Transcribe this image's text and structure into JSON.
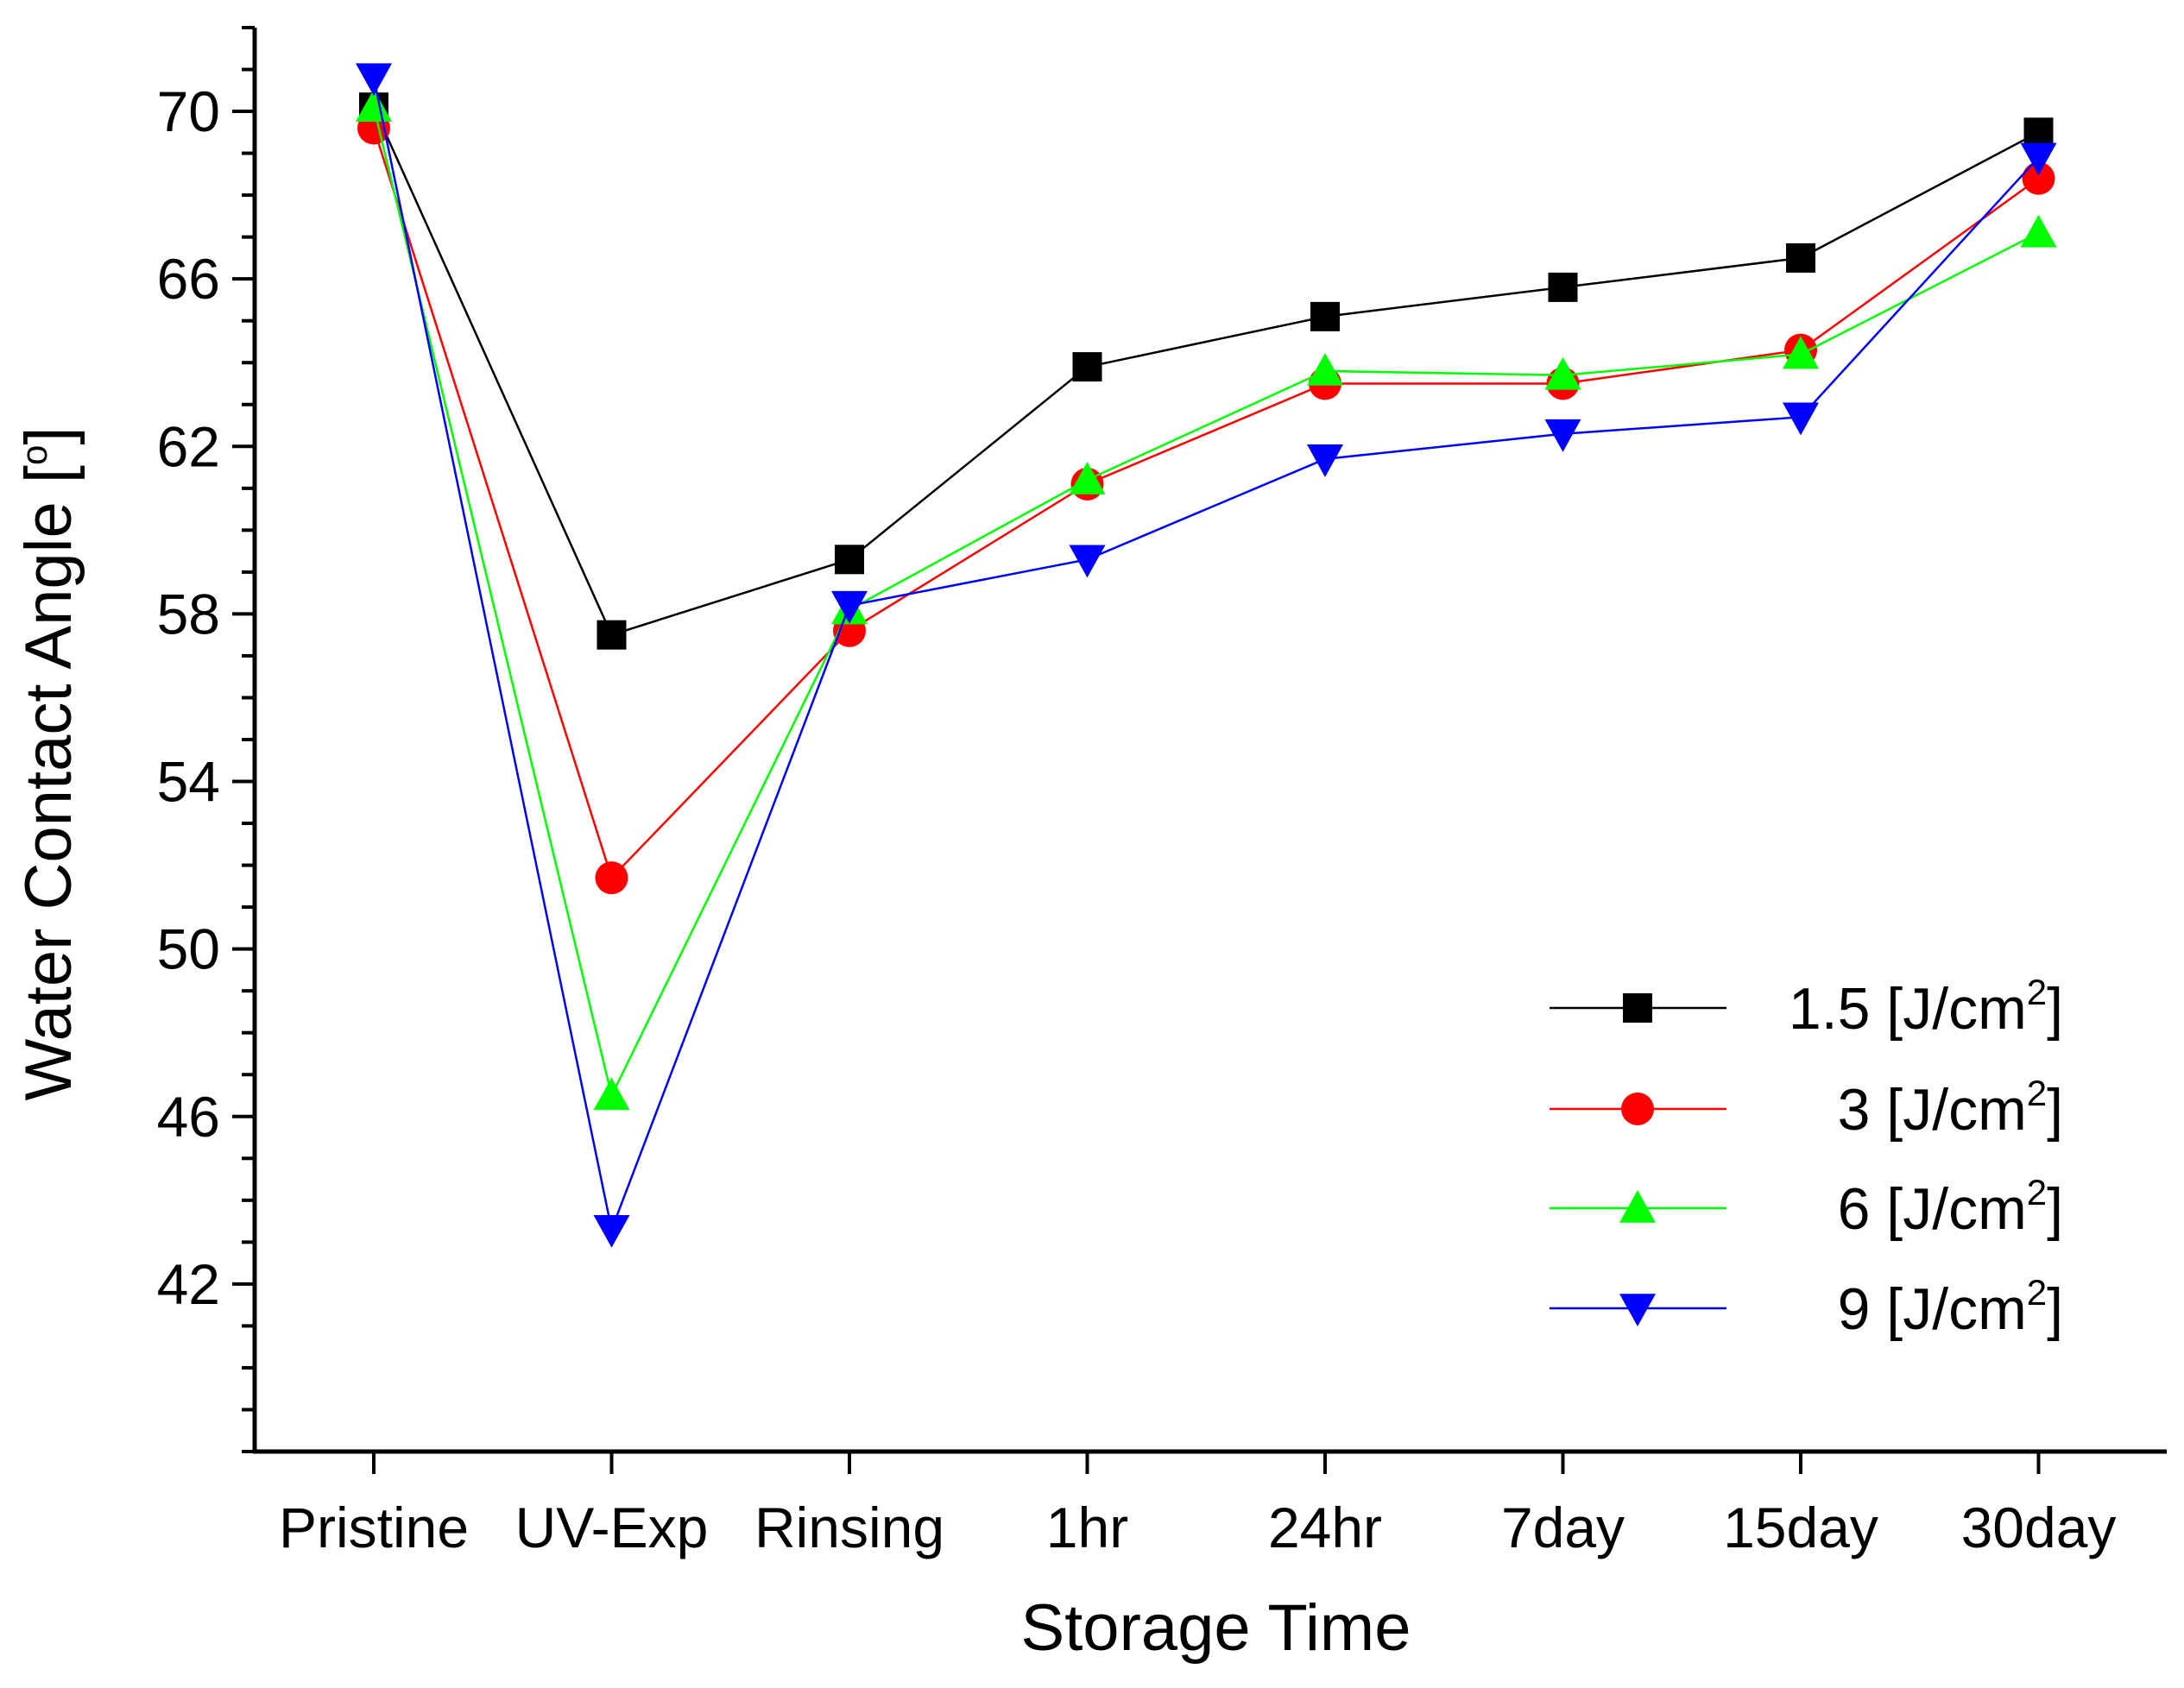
{
  "chart_data": {
    "type": "line",
    "title": "",
    "xlabel": "Storage Time",
    "ylabel": "Water Contact Angle [°]",
    "ylabel_unit": "o",
    "categories": [
      "Pristine",
      "UV-Exp",
      "Rinsing",
      "1hr",
      "24hr",
      "7day",
      "15day",
      "30day"
    ],
    "ylim": [
      38,
      72
    ],
    "yticks": [
      42,
      46,
      50,
      54,
      58,
      62,
      66,
      70
    ],
    "y_minor_step": 1,
    "grid": false,
    "legend_position": "bottom-right",
    "series": [
      {
        "name": "1.5 [J/cm2]",
        "label_main": "1.5 [J/cm",
        "label_sup": "2",
        "label_end": "]",
        "color": "#000000",
        "marker": "square",
        "values": [
          70.1,
          57.5,
          59.3,
          63.9,
          65.1,
          65.8,
          66.5,
          69.5
        ]
      },
      {
        "name": "3 [J/cm2]",
        "label_main": "3 [J/cm",
        "label_sup": "2",
        "label_end": "]",
        "color": "#ff0000",
        "marker": "circle",
        "values": [
          69.6,
          51.7,
          57.6,
          61.1,
          63.5,
          63.5,
          64.3,
          68.4
        ]
      },
      {
        "name": "6 [J/cm2]",
        "label_main": "6 [J/cm",
        "label_sup": "2",
        "label_end": "]",
        "color": "#00ff00",
        "marker": "triangle-up",
        "values": [
          70.1,
          46.5,
          58.1,
          61.2,
          63.8,
          63.7,
          64.2,
          67.1
        ]
      },
      {
        "name": "9 [J/cm2]",
        "label_main": "9 [J/cm",
        "label_sup": "2",
        "label_end": "]",
        "color": "#0000ff",
        "marker": "triangle-down",
        "values": [
          70.8,
          43.3,
          58.2,
          59.3,
          61.7,
          62.3,
          62.7,
          68.9
        ]
      }
    ]
  }
}
